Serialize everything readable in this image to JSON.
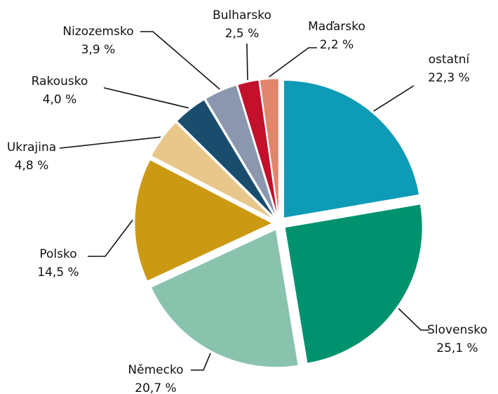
{
  "chart_data": {
    "type": "pie",
    "categories": [
      "ostatní",
      "Slovensko",
      "Německo",
      "Polsko",
      "Ukrajina",
      "Rakousko",
      "Nizozemsko",
      "Bulharsko",
      "Maďarsko"
    ],
    "values": [
      22.3,
      25.1,
      20.7,
      14.5,
      4.8,
      4.0,
      3.9,
      2.5,
      2.2
    ],
    "value_labels": [
      "22,3 %",
      "25,1 %",
      "20,7 %",
      "14,5 %",
      "4,8 %",
      "4,0 %",
      "3,9 %",
      "2,5 %",
      "2,2 %"
    ],
    "colors": [
      "#0e9bb6",
      "#00926f",
      "#8ac3ad",
      "#cc9913",
      "#e8c78a",
      "#1a4d6d",
      "#8a97ae",
      "#c3102b",
      "#e0866d"
    ]
  }
}
